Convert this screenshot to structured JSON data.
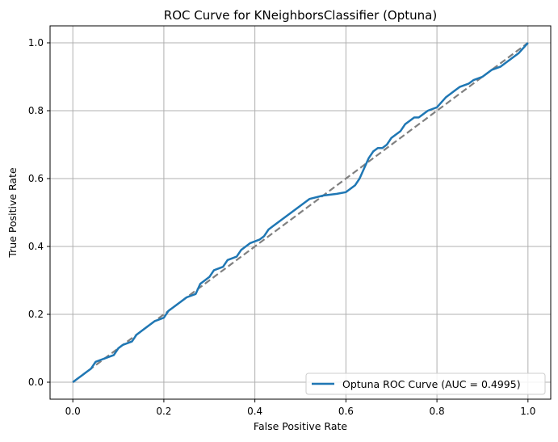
{
  "chart_data": {
    "type": "line",
    "title": "ROC Curve for KNeighborsClassifier (Optuna)",
    "xlabel": "False Positive Rate",
    "ylabel": "True Positive Rate",
    "xlim": [
      -0.05,
      1.05
    ],
    "ylim": [
      -0.05,
      1.05
    ],
    "xticks": [
      0.0,
      0.2,
      0.4,
      0.6,
      0.8,
      1.0
    ],
    "yticks": [
      0.0,
      0.2,
      0.4,
      0.6,
      0.8,
      1.0
    ],
    "xtick_labels": [
      "0.0",
      "0.2",
      "0.4",
      "0.6",
      "0.8",
      "1.0"
    ],
    "ytick_labels": [
      "0.0",
      "0.2",
      "0.4",
      "0.6",
      "0.8",
      "1.0"
    ],
    "grid": true,
    "legend_position": "lower-right",
    "series": [
      {
        "name": "Optuna ROC Curve (AUC = 0.4995)",
        "color": "#1f77b4",
        "style": "solid",
        "x": [
          0.0,
          0.01,
          0.02,
          0.03,
          0.04,
          0.05,
          0.06,
          0.07,
          0.09,
          0.1,
          0.11,
          0.13,
          0.14,
          0.15,
          0.16,
          0.18,
          0.2,
          0.21,
          0.22,
          0.24,
          0.25,
          0.27,
          0.28,
          0.29,
          0.3,
          0.31,
          0.33,
          0.34,
          0.36,
          0.37,
          0.38,
          0.39,
          0.4,
          0.41,
          0.42,
          0.43,
          0.44,
          0.46,
          0.48,
          0.5,
          0.52,
          0.55,
          0.58,
          0.6,
          0.62,
          0.63,
          0.64,
          0.65,
          0.66,
          0.67,
          0.68,
          0.69,
          0.7,
          0.72,
          0.73,
          0.74,
          0.75,
          0.76,
          0.78,
          0.8,
          0.82,
          0.84,
          0.85,
          0.87,
          0.88,
          0.9,
          0.92,
          0.94,
          0.96,
          0.98,
          1.0
        ],
        "y": [
          0.0,
          0.01,
          0.02,
          0.03,
          0.04,
          0.06,
          0.065,
          0.07,
          0.08,
          0.1,
          0.11,
          0.12,
          0.14,
          0.15,
          0.16,
          0.18,
          0.19,
          0.21,
          0.22,
          0.24,
          0.25,
          0.26,
          0.29,
          0.3,
          0.31,
          0.33,
          0.34,
          0.36,
          0.37,
          0.39,
          0.4,
          0.41,
          0.415,
          0.42,
          0.43,
          0.45,
          0.46,
          0.48,
          0.5,
          0.52,
          0.54,
          0.55,
          0.555,
          0.56,
          0.58,
          0.6,
          0.63,
          0.66,
          0.68,
          0.69,
          0.69,
          0.7,
          0.72,
          0.74,
          0.76,
          0.77,
          0.78,
          0.78,
          0.8,
          0.81,
          0.84,
          0.86,
          0.87,
          0.88,
          0.89,
          0.9,
          0.92,
          0.93,
          0.95,
          0.97,
          1.0
        ]
      },
      {
        "name": "",
        "color": "#808080",
        "style": "dashed",
        "x": [
          0.0,
          1.0
        ],
        "y": [
          0.0,
          1.0
        ]
      }
    ]
  }
}
